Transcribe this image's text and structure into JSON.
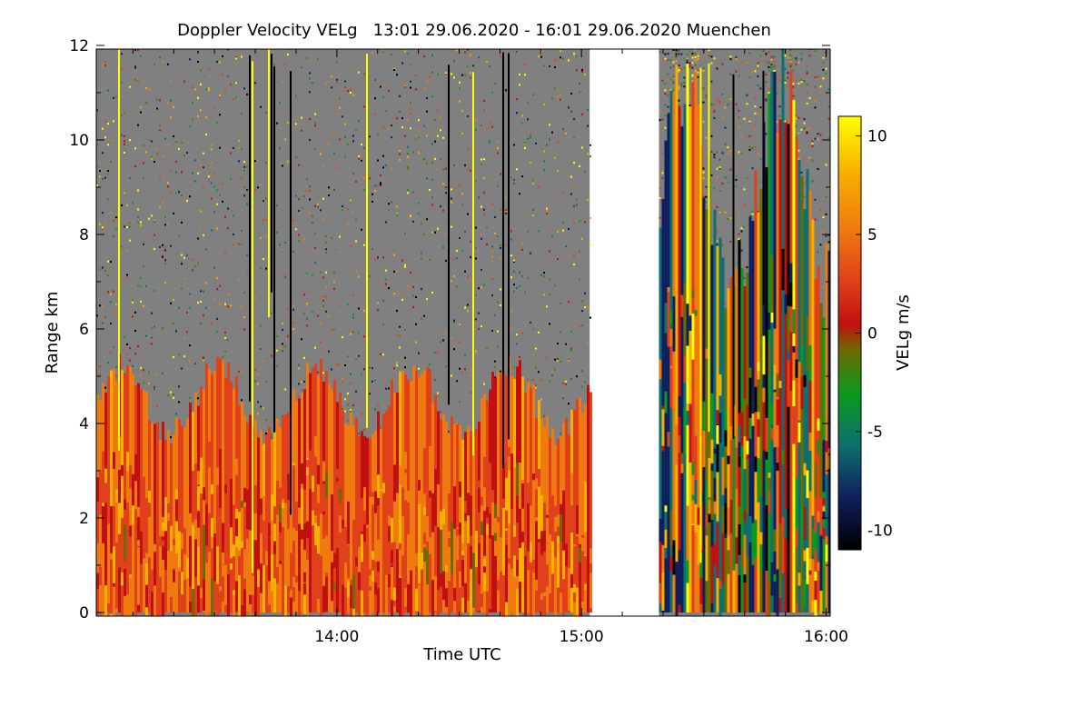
{
  "chart_data": {
    "type": "heatmap",
    "title": "Doppler Velocity VELg   13:01 29.06.2020 - 16:01 29.06.2020 Muenchen",
    "xlabel": "Time UTC",
    "ylabel": "Range km",
    "colorbar_label": "VELg m/s",
    "x_ticks": [
      "14:00",
      "15:00",
      "16:00"
    ],
    "y_ticks": [
      "0",
      "2",
      "4",
      "6",
      "8",
      "10",
      "12"
    ],
    "colorbar_ticks": [
      "10",
      "5",
      "0",
      "-5",
      "-10"
    ],
    "xlim": [
      "13:01",
      "16:01"
    ],
    "ylim": [
      0,
      12
    ],
    "clim": [
      -11,
      11
    ],
    "data_gap": [
      "15:02",
      "15:19"
    ],
    "colormap": [
      "#000000",
      "#0f1f5e",
      "#0d6f6f",
      "#0a9a1e",
      "#6b6b00",
      "#c01010",
      "#e0401a",
      "#ef7a10",
      "#f6b000",
      "#ffff00"
    ],
    "background_color": "#808080",
    "structures": [
      {
        "segment": "13:01-15:02",
        "convective_top_km": [
          3.5,
          5.5
        ],
        "dominant_velocity_ms": [
          1,
          7
        ]
      },
      {
        "segment": "15:19-16:01",
        "convective_top_km": [
          6,
          12
        ],
        "dominant_velocity_ms": [
          -10,
          10
        ]
      }
    ]
  }
}
